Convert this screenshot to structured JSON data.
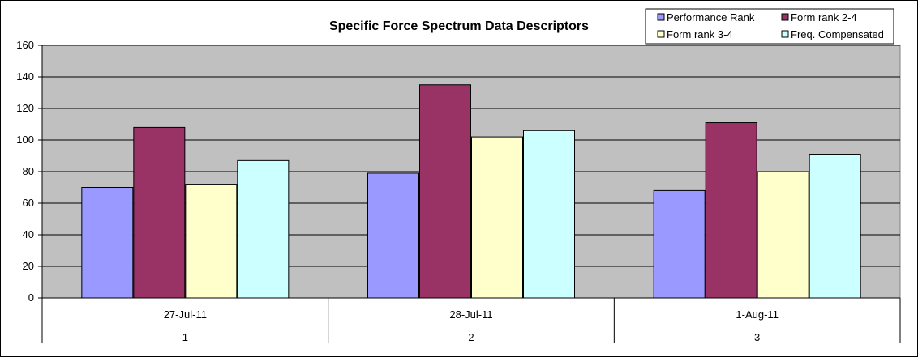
{
  "chart_data": {
    "type": "bar",
    "title": "Specific Force Spectrum Data Descriptors",
    "categories": [
      "27-Jul-11",
      "28-Jul-11",
      "1-Aug-11"
    ],
    "category_sublabels": [
      "1",
      "2",
      "3"
    ],
    "yticks": [
      "0",
      "20",
      "40",
      "60",
      "80",
      "100",
      "120",
      "140",
      "160"
    ],
    "ylim": [
      0,
      160
    ],
    "grid": true,
    "legend_position": "top-right",
    "series": [
      {
        "name": "Performance Rank",
        "color": "#9999ff",
        "values": [
          70,
          79,
          68
        ]
      },
      {
        "name": "Form rank 2-4",
        "color": "#993366",
        "values": [
          108,
          135,
          111
        ]
      },
      {
        "name": "Form rank 3-4",
        "color": "#ffffcc",
        "values": [
          72,
          102,
          80
        ]
      },
      {
        "name": "Freq. Compensated",
        "color": "#ccffff",
        "values": [
          87,
          106,
          91
        ]
      }
    ],
    "plot_background": "#c0c0c0"
  }
}
